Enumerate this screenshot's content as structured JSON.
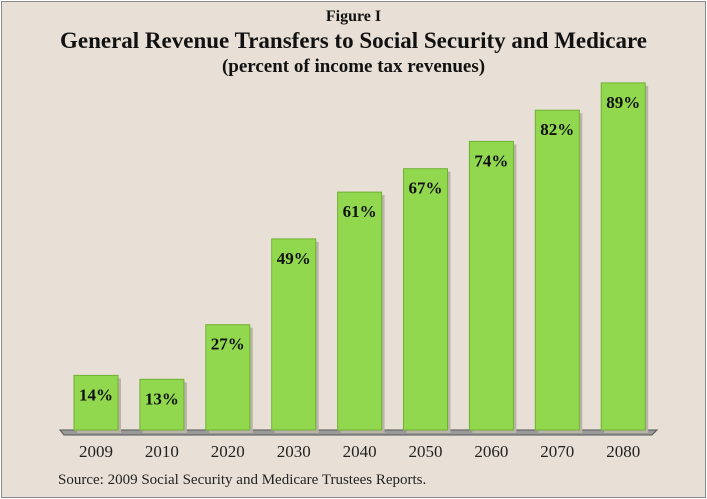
{
  "figure_label": "Figure I",
  "chart_data": {
    "type": "bar",
    "title": "General Revenue Transfers to Social Security and Medicare",
    "subtitle": "(percent of income tax revenues)",
    "categories": [
      "2009",
      "2010",
      "2020",
      "2030",
      "2040",
      "2050",
      "2060",
      "2070",
      "2080"
    ],
    "values": [
      14,
      13,
      27,
      49,
      61,
      67,
      74,
      82,
      89
    ],
    "data_labels": [
      "14%",
      "13%",
      "27%",
      "49%",
      "61%",
      "67%",
      "74%",
      "82%",
      "89%"
    ],
    "xlabel": "",
    "ylabel": "",
    "ylim": [
      0,
      90
    ],
    "grid": false,
    "bar_color": "#92d84f",
    "source": "Source: 2009 Social Security and Medicare Trustees Reports."
  }
}
